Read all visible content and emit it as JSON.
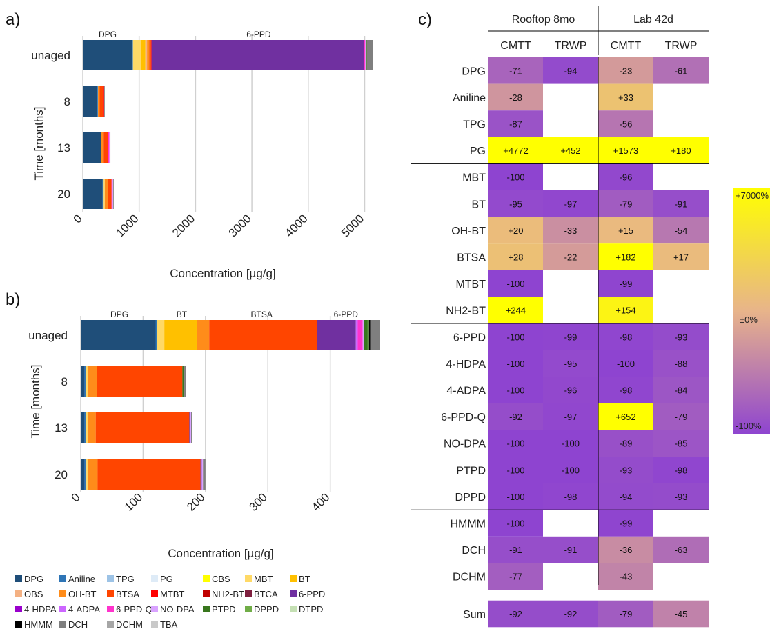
{
  "compounds": [
    {
      "name": "DPG",
      "color": "#1f4e79"
    },
    {
      "name": "Aniline",
      "color": "#2e75b6"
    },
    {
      "name": "TPG",
      "color": "#9dc3e6"
    },
    {
      "name": "PG",
      "color": "#deebf7"
    },
    {
      "name": "CBS",
      "color": "#ffff00"
    },
    {
      "name": "MBT",
      "color": "#ffd966"
    },
    {
      "name": "BT",
      "color": "#ffc000"
    },
    {
      "name": "OBS",
      "color": "#f4b183"
    },
    {
      "name": "OH-BT",
      "color": "#ff8c1a"
    },
    {
      "name": "BTSA",
      "color": "#ff4500"
    },
    {
      "name": "MTBT",
      "color": "#ff0000"
    },
    {
      "name": "NH2-BT",
      "color": "#c00000"
    },
    {
      "name": "BTCA",
      "color": "#7f1f3f"
    },
    {
      "name": "6-PPD",
      "color": "#7030a0"
    },
    {
      "name": "4-HDPA",
      "color": "#9900cc"
    },
    {
      "name": "4-ADPA",
      "color": "#cc66ff"
    },
    {
      "name": "6-PPD-Q",
      "color": "#ff33cc"
    },
    {
      "name": "NO-DPA",
      "color": "#d9a3ff"
    },
    {
      "name": "PTPD",
      "color": "#38761d"
    },
    {
      "name": "DPPD",
      "color": "#70ad47"
    },
    {
      "name": "DTPD",
      "color": "#c5e0b4"
    },
    {
      "name": "HMMM",
      "color": "#000000"
    },
    {
      "name": "DCH",
      "color": "#7f7f7f"
    },
    {
      "name": "DCHM",
      "color": "#a6a6a6"
    },
    {
      "name": "TBA",
      "color": "#c9c9c9"
    }
  ],
  "chart_data": [
    {
      "panel": "a)",
      "type": "bar",
      "orientation": "horizontal",
      "stacked": true,
      "xlabel": "Concentration [µg/g]",
      "ylabel": "Time [months]",
      "xlim": [
        0,
        5300
      ],
      "xticks": [
        0,
        1000,
        2000,
        3000,
        4000,
        5000
      ],
      "tick_rotation": -45,
      "grid": "vertical",
      "categories": [
        "unaged",
        "8",
        "13",
        "20"
      ],
      "segment_labels": [
        {
          "text": "DPG",
          "category": "unaged",
          "at": 440
        },
        {
          "text": "6-PPD",
          "category": "unaged",
          "at": 3120
        }
      ],
      "bars": [
        {
          "category": "unaged",
          "segments": [
            {
              "c": "DPG",
              "v": 880
            },
            {
              "c": "Aniline",
              "v": 10
            },
            {
              "c": "MBT",
              "v": 150
            },
            {
              "c": "BT",
              "v": 70
            },
            {
              "c": "OBS",
              "v": 30
            },
            {
              "c": "OH-BT",
              "v": 40
            },
            {
              "c": "BTSA",
              "v": 30
            },
            {
              "c": "MTBT",
              "v": 10
            },
            {
              "c": "6-PPD",
              "v": 3770
            },
            {
              "c": "6-PPD-Q",
              "v": 20
            },
            {
              "c": "NO-DPA",
              "v": 10
            },
            {
              "c": "PTPD",
              "v": 20
            },
            {
              "c": "DCH",
              "v": 110
            }
          ]
        },
        {
          "category": "8",
          "segments": [
            {
              "c": "DPG",
              "v": 260
            },
            {
              "c": "Aniline",
              "v": 10
            },
            {
              "c": "OH-BT",
              "v": 30
            },
            {
              "c": "BTSA",
              "v": 70
            },
            {
              "c": "MTBT",
              "v": 10
            },
            {
              "c": "DCH",
              "v": 10
            }
          ]
        },
        {
          "category": "13",
          "segments": [
            {
              "c": "DPG",
              "v": 320
            },
            {
              "c": "Aniline",
              "v": 10
            },
            {
              "c": "OH-BT",
              "v": 40
            },
            {
              "c": "BTSA",
              "v": 80
            },
            {
              "c": "6-PPD-Q",
              "v": 20
            },
            {
              "c": "NO-DPA",
              "v": 10
            },
            {
              "c": "DCH",
              "v": 10
            }
          ]
        },
        {
          "category": "20",
          "segments": [
            {
              "c": "DPG",
              "v": 350
            },
            {
              "c": "Aniline",
              "v": 20
            },
            {
              "c": "MBT",
              "v": 20
            },
            {
              "c": "OH-BT",
              "v": 50
            },
            {
              "c": "BTSA",
              "v": 70
            },
            {
              "c": "6-PPD-Q",
              "v": 20
            },
            {
              "c": "NO-DPA",
              "v": 10
            },
            {
              "c": "DCH",
              "v": 10
            }
          ]
        }
      ]
    },
    {
      "panel": "b)",
      "type": "bar",
      "orientation": "horizontal",
      "stacked": true,
      "xlabel": "Concentration [µg/g]",
      "ylabel": "Time [months]",
      "xlim": [
        0,
        480
      ],
      "xticks": [
        0,
        100,
        200,
        300,
        400
      ],
      "tick_rotation": -45,
      "grid": "vertical",
      "categories": [
        "unaged",
        "8",
        "13",
        "20"
      ],
      "segment_labels": [
        {
          "text": "DPG",
          "category": "unaged",
          "at": 62
        },
        {
          "text": "BT",
          "category": "unaged",
          "at": 162
        },
        {
          "text": "BTSA",
          "category": "unaged",
          "at": 290
        },
        {
          "text": "6-PPD",
          "category": "unaged",
          "at": 425
        }
      ],
      "bars": [
        {
          "category": "unaged",
          "segments": [
            {
              "c": "DPG",
              "v": 120
            },
            {
              "c": "Aniline",
              "v": 2
            },
            {
              "c": "MBT",
              "v": 12
            },
            {
              "c": "BT",
              "v": 52
            },
            {
              "c": "OH-BT",
              "v": 20
            },
            {
              "c": "BTSA",
              "v": 173
            },
            {
              "c": "6-PPD",
              "v": 62
            },
            {
              "c": "4-ADPA",
              "v": 3
            },
            {
              "c": "6-PPD-Q",
              "v": 8
            },
            {
              "c": "NO-DPA",
              "v": 2
            },
            {
              "c": "PTPD",
              "v": 6
            },
            {
              "c": "DPPD",
              "v": 2
            },
            {
              "c": "HMMM",
              "v": 2
            },
            {
              "c": "DCH",
              "v": 16
            }
          ]
        },
        {
          "category": "8",
          "segments": [
            {
              "c": "DPG",
              "v": 6
            },
            {
              "c": "Aniline",
              "v": 2
            },
            {
              "c": "MBT",
              "v": 3
            },
            {
              "c": "OH-BT",
              "v": 15
            },
            {
              "c": "BTSA",
              "v": 137
            },
            {
              "c": "PTPD",
              "v": 3
            },
            {
              "c": "DCH",
              "v": 3
            }
          ]
        },
        {
          "category": "13",
          "segments": [
            {
              "c": "DPG",
              "v": 6
            },
            {
              "c": "Aniline",
              "v": 2
            },
            {
              "c": "MBT",
              "v": 3
            },
            {
              "c": "OH-BT",
              "v": 13
            },
            {
              "c": "BTSA",
              "v": 150
            },
            {
              "c": "6-PPD",
              "v": 1
            },
            {
              "c": "NO-DPA",
              "v": 2
            },
            {
              "c": "DCH",
              "v": 2
            }
          ]
        },
        {
          "category": "20",
          "segments": [
            {
              "c": "DPG",
              "v": 6
            },
            {
              "c": "Aniline",
              "v": 3
            },
            {
              "c": "MBT",
              "v": 3
            },
            {
              "c": "OH-BT",
              "v": 15
            },
            {
              "c": "BTSA",
              "v": 165
            },
            {
              "c": "6-PPD",
              "v": 2
            },
            {
              "c": "NO-DPA",
              "v": 2
            },
            {
              "c": "DCH",
              "v": 4
            }
          ]
        }
      ]
    },
    {
      "panel": "c)",
      "type": "heatmap",
      "col_groups": [
        "Rooftop 8mo",
        "Lab 42d"
      ],
      "columns": [
        "CMTT",
        "TRWP",
        "CMTT",
        "TRWP"
      ],
      "colorbar": {
        "labels": [
          "+7000%",
          "±0%",
          "-100%"
        ],
        "colors": [
          "#ffff00",
          "#e8b48a",
          "#8e44d0"
        ]
      },
      "rows": [
        {
          "label": "DPG",
          "values": [
            "-71",
            "-94",
            "-23",
            "-61"
          ]
        },
        {
          "label": "Aniline",
          "values": [
            "-28",
            "",
            "+33",
            ""
          ]
        },
        {
          "label": "TPG",
          "values": [
            "-87",
            "",
            "-56",
            ""
          ]
        },
        {
          "label": "PG",
          "values": [
            "+4772",
            "+452",
            "+1573",
            "+180"
          ]
        },
        {
          "label": "MBT",
          "values": [
            "-100",
            "",
            "-96",
            ""
          ]
        },
        {
          "label": "BT",
          "values": [
            "-95",
            "-97",
            "-79",
            "-91"
          ]
        },
        {
          "label": "OH-BT",
          "values": [
            "+20",
            "-33",
            "+15",
            "-54"
          ]
        },
        {
          "label": "BTSA",
          "values": [
            "+28",
            "-22",
            "+182",
            "+17"
          ]
        },
        {
          "label": "MTBT",
          "values": [
            "-100",
            "",
            "-99",
            ""
          ]
        },
        {
          "label": "NH2-BT",
          "values": [
            "+244",
            "",
            "+154",
            ""
          ]
        },
        {
          "label": "6-PPD",
          "values": [
            "-100",
            "-99",
            "-98",
            "-93"
          ]
        },
        {
          "label": "4-HDPA",
          "values": [
            "-100",
            "-95",
            "-100",
            "-88"
          ]
        },
        {
          "label": "4-ADPA",
          "values": [
            "-100",
            "-96",
            "-98",
            "-84"
          ]
        },
        {
          "label": "6-PPD-Q",
          "values": [
            "-92",
            "-97",
            "+652",
            "-79"
          ]
        },
        {
          "label": "NO-DPA",
          "values": [
            "-100",
            "-100",
            "-89",
            "-85"
          ]
        },
        {
          "label": "PTPD",
          "values": [
            "-100",
            "-100",
            "-93",
            "-98"
          ]
        },
        {
          "label": "DPPD",
          "values": [
            "-100",
            "-98",
            "-94",
            "-93"
          ]
        },
        {
          "label": "HMMM",
          "values": [
            "-100",
            "",
            "-99",
            ""
          ]
        },
        {
          "label": "DCH",
          "values": [
            "-91",
            "-91",
            "-36",
            "-63"
          ]
        },
        {
          "label": "DCHM",
          "values": [
            "-77",
            "",
            "-43",
            ""
          ]
        }
      ],
      "sum": {
        "label": "Sum",
        "values": [
          "-92",
          "-92",
          "-79",
          "-45"
        ]
      }
    }
  ]
}
